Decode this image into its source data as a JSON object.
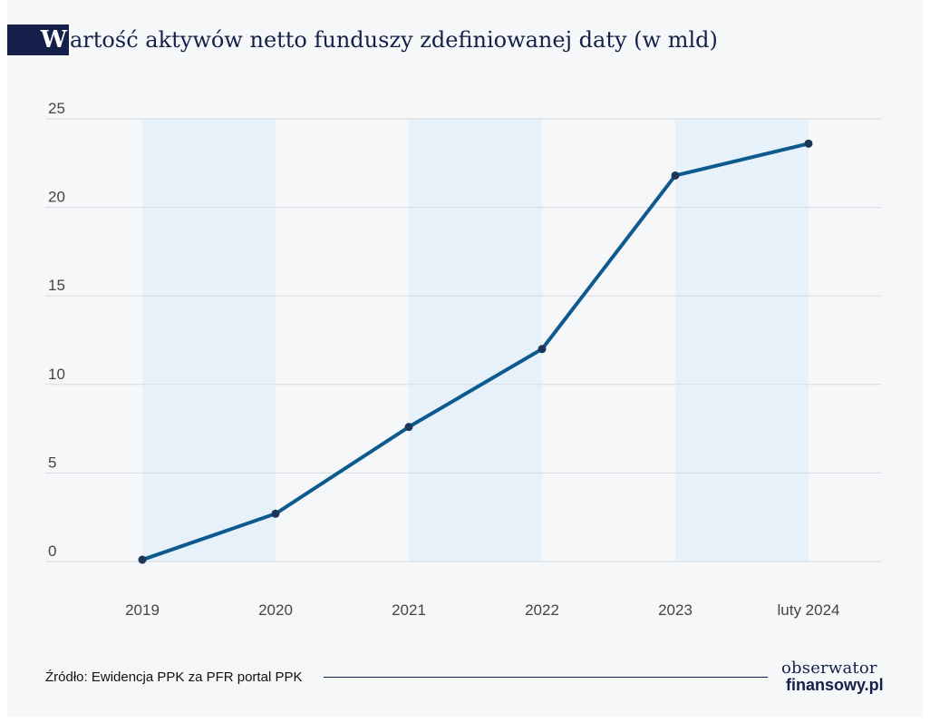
{
  "title": {
    "initial": "W",
    "rest": "artość aktywów netto funduszy zdefiniowanej daty (w mld)"
  },
  "chart_data": {
    "type": "line",
    "title": "Wartość aktywów netto funduszy zdefiniowanej daty (w mld)",
    "xlabel": "",
    "ylabel": "",
    "categories": [
      "2019",
      "2020",
      "2021",
      "2022",
      "2023",
      "luty 2024"
    ],
    "series": [
      {
        "values": [
          0.1,
          2.7,
          7.6,
          12.0,
          21.8,
          23.6
        ]
      }
    ],
    "ylim": [
      0,
      25
    ],
    "yticks": [
      0,
      5,
      10,
      15,
      20,
      25
    ],
    "grid": true,
    "shaded_bands": [
      [
        "2019",
        "2020"
      ],
      [
        "2021",
        "2022"
      ],
      [
        "2023",
        "luty 2024"
      ]
    ],
    "colors": {
      "line": "#0d5a8e",
      "band": "#e6f1fa",
      "grid": "#d7dbe0"
    }
  },
  "footer": {
    "source": "Źródło: Ewidencja PPK za PFR portal PPK"
  },
  "logo": {
    "top": "obserwator",
    "bottom": "finansowy.pl"
  }
}
